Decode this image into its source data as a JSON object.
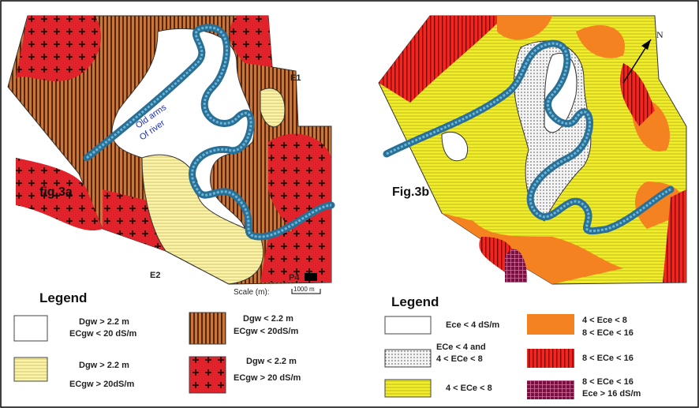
{
  "maps": [
    {
      "label": "fig.3a",
      "annotations": {
        "river": [
          "Old arms",
          "Of river"
        ],
        "points": [
          "E1",
          "E2",
          "P4"
        ]
      },
      "scale": {
        "label": "Scale (m):",
        "bar": "1000 m"
      }
    },
    {
      "label": "Fig.3b",
      "north": "N"
    }
  ],
  "legends": [
    {
      "title": "Legend",
      "items": [
        [
          "Dgw > 2.2 m",
          "ECgw < 20 dS/m"
        ],
        [
          "Dgw > 2.2 m",
          "ECgw > 20dS/m"
        ],
        [
          "Dgw < 2.2 m",
          "ECgw < 20dS/m"
        ],
        [
          "Dgw < 2.2 m",
          "ECgw > 20 dS/m"
        ]
      ]
    },
    {
      "title": "Legend",
      "items": [
        [
          "Ece < 4 dS/m"
        ],
        [
          "ECe < 4 and",
          "4 < ECe < 8"
        ],
        [
          "4 < ECe < 8"
        ],
        [
          "4 < Ece < 8",
          "8 < ECe < 16"
        ],
        [
          "8 < ECe < 16"
        ],
        [
          "8 < ECe < 16",
          "Ece > 16 dS/m"
        ]
      ]
    }
  ]
}
